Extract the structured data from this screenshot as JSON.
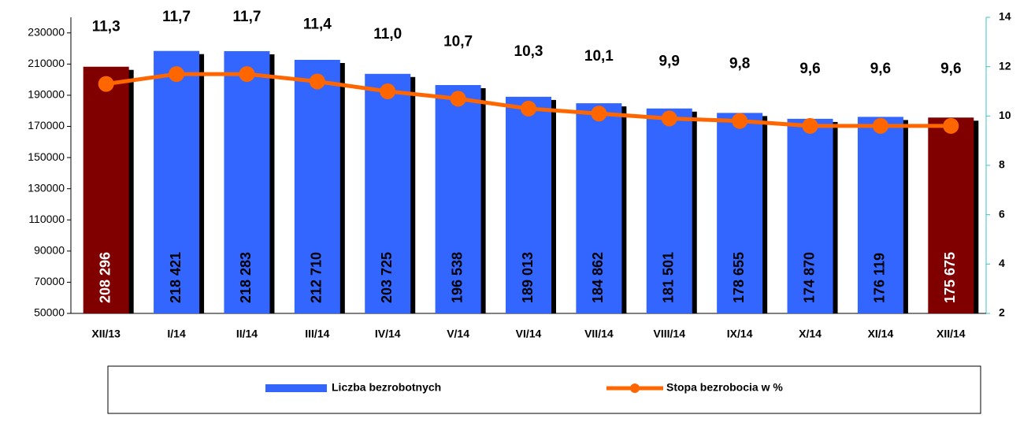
{
  "chart_data": {
    "type": "combo",
    "categories": [
      "XII/13",
      "I/14",
      "II/14",
      "III/14",
      "IV/14",
      "V/14",
      "VI/14",
      "VII/14",
      "VIII/14",
      "IX/14",
      "X/14",
      "XI/14",
      "XII/14"
    ],
    "series": [
      {
        "name": "Liczba bezrobotnych",
        "type": "bar",
        "color": "#3366ff",
        "colors": [
          "#800000",
          "#3366ff",
          "#3366ff",
          "#3366ff",
          "#3366ff",
          "#3366ff",
          "#3366ff",
          "#3366ff",
          "#3366ff",
          "#3366ff",
          "#3366ff",
          "#3366ff",
          "#800000"
        ],
        "values": [
          208296,
          218421,
          218283,
          212710,
          203725,
          196538,
          189013,
          184862,
          181501,
          178655,
          174870,
          176119,
          175675
        ],
        "value_labels": [
          "208 296",
          "218 421",
          "218 283",
          "212 710",
          "203 725",
          "196 538",
          "189 013",
          "184 862",
          "181 501",
          "178 655",
          "174 870",
          "176 119",
          "175 675"
        ]
      },
      {
        "name": "Stopa bezrobocia w %",
        "type": "line",
        "axis": "y2",
        "color": "#ff6600",
        "values": [
          11.3,
          11.7,
          11.7,
          11.4,
          11.0,
          10.7,
          10.3,
          10.1,
          9.9,
          9.8,
          9.6,
          9.6,
          9.6
        ],
        "value_labels": [
          "11,3",
          "11,7",
          "11,7",
          "11,4",
          "11,0",
          "10,7",
          "10,3",
          "10,1",
          "9,9",
          "9,8",
          "9,6",
          "9,6",
          "9,6"
        ]
      }
    ],
    "ylim": [
      50000,
      240000
    ],
    "yticks": [
      50000,
      70000,
      90000,
      110000,
      130000,
      150000,
      170000,
      190000,
      210000,
      230000
    ],
    "y2lim": [
      2,
      14
    ],
    "y2ticks": [
      2,
      4,
      6,
      8,
      10,
      12,
      14
    ],
    "legend": "bottom"
  }
}
